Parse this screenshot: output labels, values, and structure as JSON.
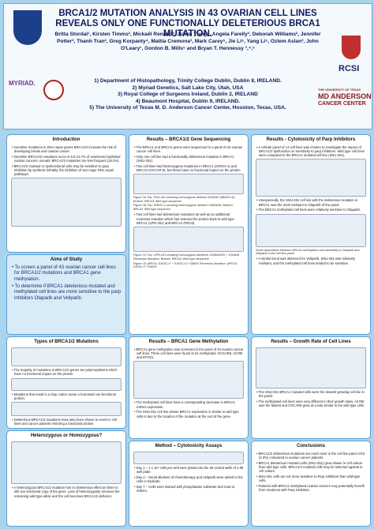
{
  "header": {
    "title": "BRCA1/2 MUTATION ANALYSIS IN 43 OVARIAN CELL LINES REVEALS ONLY ONE FUNCTIONALLY DELETERIOUS BRCA1 MUTATION.",
    "authors": "Britta Stordal¹, Kirsten Timms², Mickaël Renaud³, Julien Thery¹, Angela Farelly³, Deborah Williams², Jennifer Potter², Thanh Tran², Greg Korpanty⁴, Mattia Cremona³, Mark Carey⁵, Jie Li⁵, Yang Li⁵, Ozlem Aslan³, John O'Leary¹, Gordon B. Mills⁵ and Bryan T. Hennessy ³,⁴,⁵",
    "affiliations": [
      "1) Department of Histopathology, Trinity College Dublin, Dublin 8, IRELAND.",
      "2) Myriad Genetics, Salt Lake City, Utah, USA",
      "3) Royal College of Surgeons Ireland, Dublin 2, IRELAND",
      "4) Beaumont Hospital, Dublin 9, IRELAND.",
      "5) The University of Texas M. D. Anderson Cancer Center, Houston, Texas, USA."
    ],
    "logos": [
      "MYRIAD.",
      "RCSI",
      "THE UNIVERSITY OF TEXAS",
      "MD ANDERSON",
      "CANCER CENTER"
    ]
  },
  "sections": [
    {
      "heading": "Introduction",
      "bullets": [
        "Germline mutations in DNA repair genes BRCA1/2 increase the risk of developing breast and ovarian cancer.",
        "Germline BRCA1/2 mutations occur in 6.6-13.7% of unselected epithelial ovarian cancers, somatic BRCA1/2 mutations are less frequent (18.2%).",
        "BRCA1/2 mutated or dysfunctional cells may be sensitive to parp inhibition by synthetic lethality, the inhibition of two major DNA repair pathways."
      ]
    },
    {
      "heading": "Aims of Study",
      "bullets": [
        "To screen a panel of 43 ovarian cancer cell lines for BRCA1/2 mutations and BRCA1 gene methylation.",
        "To determine if BRCA1 deleterious mutated and methylated cell lines are more sensitive to the parp inhibitors Olaparib and Veliparib."
      ]
    },
    {
      "heading": "Types of BRCA1/2 Mutations",
      "bullets": [
        "The majority of mutations in BRCA1/2 genes are polymorphisms which have no functional impact on the protein.",
        "Mutations that result in a stop codon cause a truncated non-functional protein.",
        "Deleterious BRCA1/2 mutations have also been shown to revert in cell lines and cancer patients restoring a functional protein."
      ]
    },
    {
      "heading": "Heterozygous or Homozygous?",
      "bullets": [
        "A heterozygous BRCA1/2 mutation has no deleterious effect as there is still one functional copy of the gene. Loss of heterozygosity removes the remaining wild type allele and the cell becomes BRCA1/2 deficient."
      ]
    },
    {
      "heading": "Results – BRCA1/2 Gene Sequencing",
      "bullets": [
        "The BRCA1 and BRCA2 genes were sequenced in a panel of 43 ovarian cancer cell lines.",
        "Only one cell line had a functionally deleterious mutation in BRCA1 (SNU-251).",
        "Two cell lines had heterozygous mutations in BRCA1 (IGROV-1) and BRCA2 (OVCAR-8), but these have no functional impact on the protein.",
        "Two cell lines had deleterious mutations as well as an additional reversion mutation which has restored the protein back to wild type BRCA1 (UPN 251) and BRCA2 (PEO4)."
      ],
      "captions": [
        "Figure 1A Top: SNU-251 showing homozygous deletion W1815X (5840G>A). Bottom: BRCA1 Wild type sequence",
        "Figure 1B Top: IGROV-1 showing heterozygous deletion 2080delA. Bottom: BRCA1 Wild type sequence",
        "Figure 1C Top: UPN-251 showing homozygous deletions 1198del429 + 124delA Reversion Mutation. Bottom: BRCA1 Wild type sequence",
        "Figure 1D pPEO1: 5193C>T + 5193C>G Y1655X Reversion Mutation. pPEO4: 5193C>T Y1655Y"
      ]
    },
    {
      "heading": "Results – BRCA1 Gene Methylation",
      "bullets": [
        "BRCA1 gene methylation was screened in the panel of 43 ovarian cancer cell lines. Three cell lines were found to be methylated: OVCAR8, A2780 and EFO21.",
        "The methylated cell lines have a corresponding decrease in BRCA1 mRNA expression.",
        "The SNU-251 cell line whose BRCA1 expression is similar to wild type cells is due to the location of the mutation at the end of the gene."
      ]
    },
    {
      "heading": "Method – Cytotoxicity Assays",
      "bullets": [
        "Day 1 – 1 x 10⁴ cells per well were plated into the 60 central wells of a 96 well plate.",
        "Day 2 – Serial dilutions of chemotherapy and Veliparib were added to the cells in triplicate.",
        "Day 7 – Cells were stained with phosphatase substrate and read at 405nm."
      ]
    },
    {
      "heading": "Results - Cytotoxicity of Parp Inhibitors",
      "bullets": [
        "A cellular panel of 14 cell lines was chosen to investigate the impact of BRCA1/2 dysfunction on sensitivity to parp inhibitors. Wild type cell lines were compared to the BRCA1 mutated cell line (SNU-251).",
        "Unexpectedly, the SNU-251 cell line with the deleterious mutation in BRCA1 was the most resistant to Olaparib of the panel.",
        "The BRCA1 methylated cell lines were relatively sensitive to Olaparib.",
        "A similar trend was observed for Veliparib, SNU-251 was relatively resistant, and the methylated cell lines tended to be sensitive."
      ],
      "captions": [
        "Some association between BRCA1 methylation and sensitivity to Olaparib and Veliparib in the cell line panel"
      ]
    },
    {
      "heading": "Results – Growth Rate of Cell Lines",
      "bullets": [
        "The SNU-251 BRCA1 mutated cells were the slowest growing cell line in the panel.",
        "The methylated cell lines were very different in their growth rates, A2780 was the fastest and OVCAR8 grew at a rate similar to the wild type cells."
      ]
    },
    {
      "heading": "Conclusions",
      "bullets": [
        "BRCA1/2 deleterious mutations are much rarer in the cell line panel 1/43 (2.3%) compared to ovarian cancer patients.",
        "BRCA1 deleterious mutated cells (SNU-251) grow slower in cell culture than wild type cells. BRCA1/2 mutated cells may be selected against in cell culture.",
        "SNU-251 cells are not more sensitive to Parp inhibitors than wild-type cells.",
        "Patients with BRCA1 methylated ovarian cancers may potentially benefit from treatment with Parp inhibitors."
      ]
    }
  ]
}
